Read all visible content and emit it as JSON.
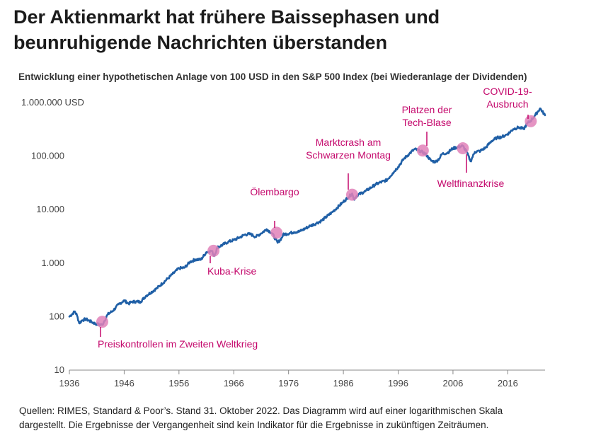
{
  "title_line1": "Der Aktienmarkt hat frühere Baissephasen und",
  "title_line2": "beunruhigende Nachrichten überstanden",
  "source_line1": "Quellen: RIMES, Standard & Poor’s. Stand 31. Oktober 2022. Das Diagramm wird auf einer logarithmischen Skala",
  "source_line2": "dargestellt. Die Ergebnisse der Vergangenheit sind kein Indikator für die Ergebnisse in zukünftigen Zeiträumen.",
  "colors": {
    "line": "#1f5fa6",
    "highlight": "#e081b9",
    "annotation": "#c4086c"
  },
  "chart_data": {
    "type": "line",
    "title": "Entwicklung einer hypothetischen Anlage von 100 USD in den S&P 500 Index (bei Wiederanlage der Dividenden)",
    "yscale": "log",
    "ylim": [
      10,
      1000000
    ],
    "xlim": [
      1936,
      2022.8
    ],
    "y_ticks": [
      {
        "value": 10,
        "label": "10"
      },
      {
        "value": 100,
        "label": "100"
      },
      {
        "value": 1000,
        "label": "1.000"
      },
      {
        "value": 10000,
        "label": "10.000"
      },
      {
        "value": 100000,
        "label": "100.000"
      },
      {
        "value": 1000000,
        "label": "1.000.000 USD"
      }
    ],
    "x_ticks": [
      {
        "value": 1936,
        "label": "1936"
      },
      {
        "value": 1946,
        "label": "1946"
      },
      {
        "value": 1956,
        "label": "1956"
      },
      {
        "value": 1966,
        "label": "1966"
      },
      {
        "value": 1976,
        "label": "1976"
      },
      {
        "value": 1986,
        "label": "1986"
      },
      {
        "value": 1996,
        "label": "1996"
      },
      {
        "value": 2006,
        "label": "2006"
      },
      {
        "value": 2016,
        "label": "2016"
      }
    ],
    "series": [
      {
        "name": "S&P 500 (100 USD Anlage)",
        "x": [
          1936,
          1937,
          1937.4,
          1937.8,
          1938.3,
          1939,
          1940,
          1941,
          1942,
          1942.3,
          1943,
          1944,
          1945,
          1946,
          1946.8,
          1947.5,
          1949,
          1950,
          1952,
          1954,
          1956,
          1957,
          1958,
          1959,
          1960,
          1961,
          1962,
          1962.4,
          1963,
          1965,
          1966,
          1967,
          1968,
          1969,
          1970,
          1971,
          1972,
          1973,
          1974,
          1974.8,
          1975,
          1977,
          1978,
          1980,
          1981,
          1982,
          1984,
          1986,
          1987.6,
          1987.9,
          1988.5,
          1990,
          1992,
          1994,
          1995,
          1996,
          1997,
          1998,
          1999,
          2000,
          2001,
          2002,
          2002.8,
          2003.5,
          2004,
          2005,
          2006,
          2007.8,
          2008.5,
          2009.2,
          2010,
          2011,
          2012,
          2013,
          2014,
          2015,
          2016,
          2017,
          2018,
          2018.9,
          2019.5,
          2020.2,
          2021,
          2021.9,
          2022.8
        ],
        "values": [
          100,
          125,
          105,
          75,
          85,
          90,
          80,
          72,
          70,
          80,
          110,
          130,
          170,
          200,
          175,
          190,
          190,
          245,
          340,
          520,
          800,
          820,
          1050,
          1170,
          1160,
          1600,
          1700,
          1350,
          1950,
          2500,
          2700,
          3000,
          3400,
          3500,
          3100,
          3600,
          4300,
          3600,
          2400,
          3000,
          3400,
          3800,
          3900,
          5000,
          5500,
          6200,
          9000,
          14000,
          20000,
          15500,
          18500,
          22000,
          30000,
          36000,
          48000,
          63000,
          88000,
          110000,
          135000,
          125000,
          110000,
          82000,
          78000,
          90000,
          110000,
          115000,
          140000,
          155000,
          120000,
          80000,
          120000,
          125000,
          145000,
          190000,
          220000,
          230000,
          260000,
          320000,
          345000,
          320000,
          400000,
          460000,
          580000,
          780000,
          580000
        ]
      }
    ],
    "annotations": [
      {
        "label_lines": [
          "Preiskontrollen im Zweiten Weltkrieg"
        ],
        "x": 1942,
        "y": 80
      },
      {
        "label_lines": [
          "Kuba-Krise"
        ],
        "x": 1962.3,
        "y": 1700
      },
      {
        "label_lines": [
          "Ölembargo"
        ],
        "x": 1973.8,
        "y": 3700
      },
      {
        "label_lines": [
          "Marktcrash am",
          "Schwarzen Montag"
        ],
        "x": 1987.6,
        "y": 19000
      },
      {
        "label_lines": [
          "Platzen der",
          "Tech-Blase"
        ],
        "x": 2000.5,
        "y": 127000
      },
      {
        "label_lines": [
          "Weltfinanzkrise"
        ],
        "x": 2007.8,
        "y": 140000
      },
      {
        "label_lines": [
          "COVID-19-",
          "Ausbruch"
        ],
        "x": 2020.2,
        "y": 450000
      }
    ]
  }
}
